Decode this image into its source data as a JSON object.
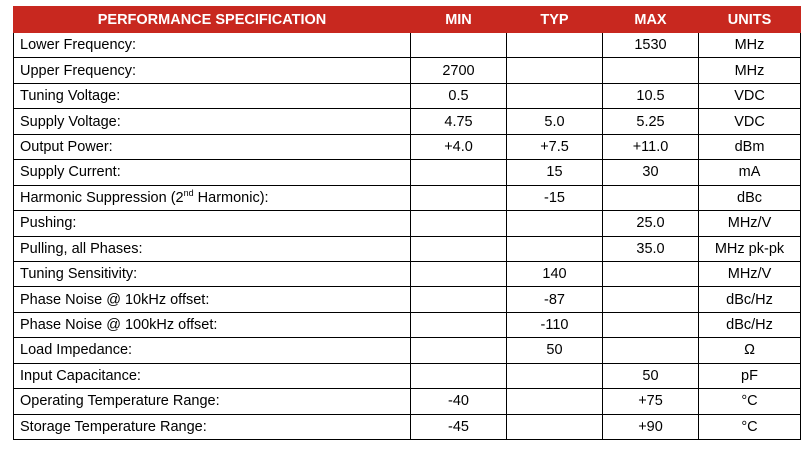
{
  "colors": {
    "header_bg": "#c8281f",
    "header_text": "#ffffff",
    "border": "#000000"
  },
  "table": {
    "headers": {
      "parameter": "PERFORMANCE SPECIFICATION",
      "min": "MIN",
      "typ": "TYP",
      "max": "MAX",
      "units": "UNITS"
    },
    "rows": [
      {
        "parameter": "Lower Frequency:",
        "min": "",
        "typ": "",
        "max": "1530",
        "units": "MHz"
      },
      {
        "parameter": "Upper Frequency:",
        "min": "2700",
        "typ": "",
        "max": "",
        "units": "MHz"
      },
      {
        "parameter": "Tuning Voltage:",
        "min": "0.5",
        "typ": "",
        "max": "10.5",
        "units": "VDC"
      },
      {
        "parameter": "Supply Voltage:",
        "min": "4.75",
        "typ": "5.0",
        "max": "5.25",
        "units": "VDC"
      },
      {
        "parameter": "Output Power:",
        "min": "+4.0",
        "typ": "+7.5",
        "max": "+11.0",
        "units": "dBm"
      },
      {
        "parameter": "Supply Current:",
        "min": "",
        "typ": "15",
        "max": "30",
        "units": "mA"
      },
      {
        "parameter_pre": "Harmonic Suppression (2",
        "parameter_sup": "nd",
        "parameter_post": " Harmonic):",
        "min": "",
        "typ": "-15",
        "max": "",
        "units": "dBc"
      },
      {
        "parameter": "Pushing:",
        "min": "",
        "typ": "",
        "max": "25.0",
        "units": "MHz/V"
      },
      {
        "parameter": "Pulling, all Phases:",
        "min": "",
        "typ": "",
        "max": "35.0",
        "units": "MHz pk-pk"
      },
      {
        "parameter": "Tuning Sensitivity:",
        "min": "",
        "typ": "140",
        "max": "",
        "units": "MHz/V"
      },
      {
        "parameter": "Phase Noise @ 10kHz offset:",
        "min": "",
        "typ": "-87",
        "max": "",
        "units": "dBc/Hz"
      },
      {
        "parameter": "Phase Noise @ 100kHz offset:",
        "min": "",
        "typ": "-110",
        "max": "",
        "units": "dBc/Hz"
      },
      {
        "parameter": "Load Impedance:",
        "min": "",
        "typ": "50",
        "max": "",
        "units": "Ω"
      },
      {
        "parameter": "Input Capacitance:",
        "min": "",
        "typ": "",
        "max": "50",
        "units": "pF"
      },
      {
        "parameter": "Operating Temperature Range:",
        "min": "-40",
        "typ": "",
        "max": "+75",
        "units": "°C"
      },
      {
        "parameter": "Storage Temperature Range:",
        "min": "-45",
        "typ": "",
        "max": "+90",
        "units": "°C"
      }
    ]
  }
}
